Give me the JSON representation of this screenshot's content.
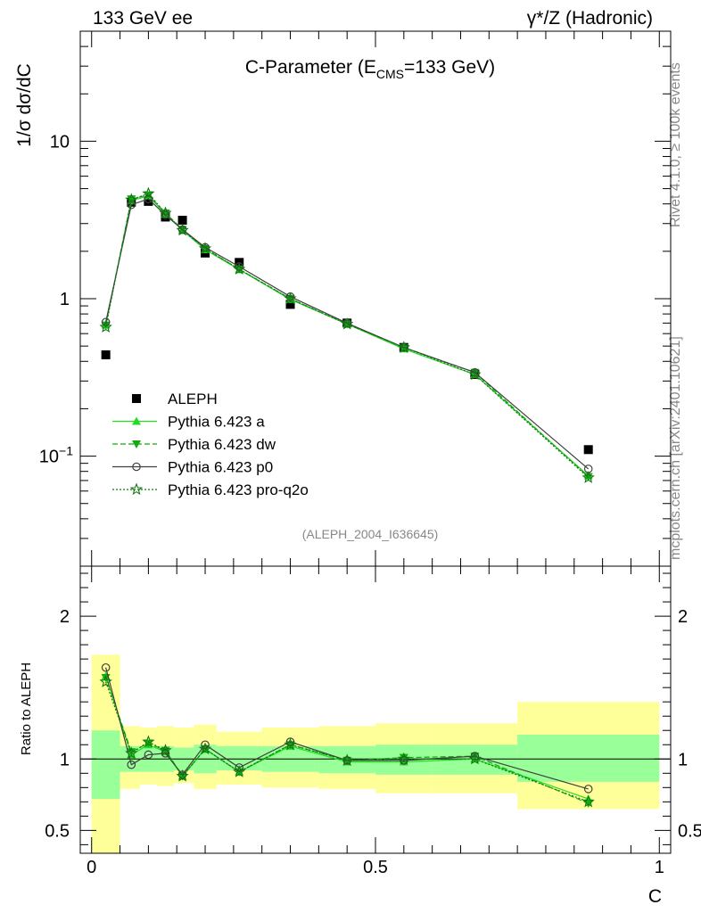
{
  "header": {
    "left": "133 GeV ee",
    "right": "γ*/Z (Hadronic)"
  },
  "side_text": {
    "rivet": "Rivet 4.1.0, ≥ 100k events",
    "mcplots": "mcplots.cern.ch [arXiv:2401.10621]"
  },
  "colors": {
    "data": "#000000",
    "pythia_a": "#22dd22",
    "pythia_dw": "#11aa11",
    "pythia_p0": "#404040",
    "pythia_pro_q2o": "#117711",
    "band_inner": "#99ff99",
    "band_outer": "#ffff99"
  },
  "chart_data": [
    {
      "type": "line",
      "panel": "main",
      "title": "C-Parameter (E_CMS=133 GeV)",
      "title_parts": {
        "main": "C-Parameter (E",
        "sub": "CMS",
        "tail": "=133 GeV)"
      },
      "ylabel": "1/σ  dσ/dC",
      "xlabel": "",
      "yscale": "log",
      "ylim": [
        0.02,
        50
      ],
      "xlim": [
        -0.02,
        1.02
      ],
      "yticks": [
        {
          "value": 10,
          "label": "10"
        },
        {
          "value": 1,
          "label": "1"
        },
        {
          "value": 0.1,
          "label": "10",
          "exp": "−1"
        }
      ],
      "analysis_label": "(ALEPH_2004_I636645)",
      "x": [
        0.025,
        0.07,
        0.1,
        0.13,
        0.16,
        0.2,
        0.26,
        0.35,
        0.45,
        0.55,
        0.675,
        0.875
      ],
      "series": [
        {
          "name": "ALEPH",
          "marker": "square",
          "values": [
            0.44,
            4.1,
            4.15,
            3.3,
            3.15,
            1.95,
            1.7,
            0.92,
            0.7,
            0.49,
            0.33,
            0.11
          ]
        },
        {
          "name": "Pythia 6.423 a",
          "marker": "triangle-up",
          "dash": "solid",
          "values": [
            0.68,
            4.2,
            4.5,
            3.45,
            2.72,
            2.05,
            1.53,
            0.99,
            0.69,
            0.48,
            0.33,
            0.075
          ]
        },
        {
          "name": "Pythia 6.423 dw",
          "marker": "triangle-down",
          "dash": "dashed",
          "values": [
            0.68,
            4.3,
            4.55,
            3.5,
            2.75,
            2.08,
            1.54,
            1.0,
            0.69,
            0.49,
            0.34,
            0.074
          ]
        },
        {
          "name": "Pythia 6.423 p0",
          "marker": "circle-open",
          "dash": "solid",
          "values": [
            0.71,
            3.95,
            4.3,
            3.4,
            2.75,
            2.12,
            1.6,
            1.03,
            0.7,
            0.49,
            0.34,
            0.083
          ]
        },
        {
          "name": "Pythia 6.423 pro-q2o",
          "marker": "star-open",
          "dash": "dotted",
          "values": [
            0.66,
            4.25,
            4.65,
            3.5,
            2.72,
            2.08,
            1.54,
            1.0,
            0.69,
            0.49,
            0.33,
            0.073
          ]
        }
      ]
    },
    {
      "type": "line",
      "panel": "ratio",
      "ylabel": "Ratio to ALEPH",
      "xlabel": "C",
      "ylim": [
        0.34,
        2.35
      ],
      "xlim": [
        -0.02,
        1.02
      ],
      "xticks": [
        {
          "value": 0,
          "label": "0"
        },
        {
          "value": 0.5,
          "label": "0.5"
        },
        {
          "value": 1,
          "label": "1"
        }
      ],
      "yticks": [
        {
          "value": 2,
          "label": "2"
        },
        {
          "value": 1,
          "label": "1"
        },
        {
          "value": 0.5,
          "label": "0.5"
        }
      ],
      "bands": [
        {
          "x0": 0.0,
          "x1": 0.05,
          "inner": [
            0.72,
            1.2
          ],
          "outer": [
            0.0,
            1.73
          ]
        },
        {
          "x0": 0.05,
          "x1": 0.085,
          "inner": [
            0.91,
            1.09
          ],
          "outer": [
            0.79,
            1.23
          ]
        },
        {
          "x0": 0.085,
          "x1": 0.115,
          "inner": [
            0.91,
            1.09
          ],
          "outer": [
            0.82,
            1.22
          ]
        },
        {
          "x0": 0.115,
          "x1": 0.145,
          "inner": [
            0.91,
            1.09
          ],
          "outer": [
            0.81,
            1.23
          ]
        },
        {
          "x0": 0.145,
          "x1": 0.18,
          "inner": [
            0.92,
            1.08
          ],
          "outer": [
            0.83,
            1.22
          ]
        },
        {
          "x0": 0.18,
          "x1": 0.22,
          "inner": [
            0.9,
            1.1
          ],
          "outer": [
            0.79,
            1.24
          ]
        },
        {
          "x0": 0.22,
          "x1": 0.3,
          "inner": [
            0.92,
            1.09
          ],
          "outer": [
            0.82,
            1.19
          ]
        },
        {
          "x0": 0.3,
          "x1": 0.4,
          "inner": [
            0.91,
            1.09
          ],
          "outer": [
            0.8,
            1.22
          ]
        },
        {
          "x0": 0.4,
          "x1": 0.5,
          "inner": [
            0.9,
            1.09
          ],
          "outer": [
            0.79,
            1.23
          ]
        },
        {
          "x0": 0.5,
          "x1": 0.6,
          "inner": [
            0.89,
            1.1
          ],
          "outer": [
            0.76,
            1.25
          ]
        },
        {
          "x0": 0.6,
          "x1": 0.75,
          "inner": [
            0.89,
            1.1
          ],
          "outer": [
            0.76,
            1.25
          ]
        },
        {
          "x0": 0.75,
          "x1": 1.0,
          "inner": [
            0.84,
            1.17
          ],
          "outer": [
            0.65,
            1.4
          ]
        }
      ],
      "x": [
        0.025,
        0.07,
        0.1,
        0.13,
        0.16,
        0.2,
        0.26,
        0.35,
        0.45,
        0.55,
        0.675,
        0.875
      ],
      "series": [
        {
          "name": "Pythia 6.423 a",
          "values": [
            1.58,
            1.03,
            1.1,
            1.05,
            0.88,
            1.07,
            0.91,
            1.09,
            0.98,
            0.98,
            1.0,
            0.72
          ]
        },
        {
          "name": "Pythia 6.423 dw",
          "values": [
            1.57,
            1.05,
            1.11,
            1.06,
            0.88,
            1.07,
            0.91,
            1.1,
            0.99,
            1.01,
            1.02,
            0.69
          ]
        },
        {
          "name": "Pythia 6.423 p0",
          "values": [
            1.64,
            0.96,
            1.03,
            1.04,
            0.89,
            1.1,
            0.94,
            1.12,
            0.99,
            0.99,
            1.02,
            0.79
          ]
        },
        {
          "name": "Pythia 6.423 pro-q2o",
          "values": [
            1.54,
            1.04,
            1.12,
            1.06,
            0.88,
            1.07,
            0.91,
            1.1,
            0.99,
            1.0,
            1.0,
            0.7
          ]
        }
      ]
    }
  ]
}
